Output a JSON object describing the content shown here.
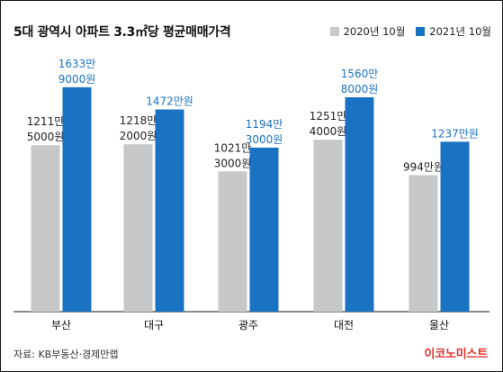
{
  "title": "5대 광역시 아파트 3.3㎡당 평균매매가격",
  "source": "자료: KB부동산·경제만랩",
  "brand": "이코노미스트",
  "colors": {
    "gray": "#c6c8ca",
    "blue": "#1a73c2",
    "axis": "#444444",
    "label_dark": "#222222",
    "label_blue": "#1a73c2"
  },
  "chart_data": {
    "type": "bar",
    "categories": [
      "부산",
      "대구",
      "광주",
      "대전",
      "울산"
    ],
    "series": [
      {
        "name": "2020년 10월",
        "values": [
          12115000,
          12182000,
          10213000,
          12514000,
          9940000
        ],
        "labels": [
          [
            "1211만",
            "5000원"
          ],
          [
            "1218만",
            "2000원"
          ],
          [
            "1021만",
            "3000원"
          ],
          [
            "1251만",
            "4000원"
          ],
          [
            "994만원"
          ]
        ]
      },
      {
        "name": "2021년 10월",
        "values": [
          16339000,
          14720000,
          11943000,
          15608000,
          12370000
        ],
        "labels": [
          [
            "1633만",
            "9000원"
          ],
          [
            "1472만원"
          ],
          [
            "1194만",
            "3000원"
          ],
          [
            "1560만",
            "8000원"
          ],
          [
            "1237만원"
          ]
        ]
      }
    ],
    "ylim": [
      0,
      20000000
    ],
    "grid": false,
    "legend": "top-right"
  }
}
